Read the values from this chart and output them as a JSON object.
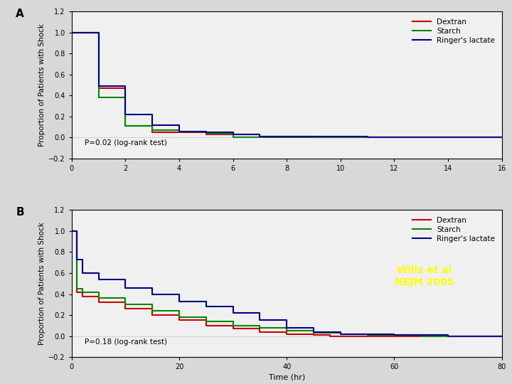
{
  "background_color": "#d8d8d8",
  "panel_bg": "#f0f0f0",
  "title_A": "A",
  "title_B": "B",
  "ylabel": "Proportion of Patients with Shock",
  "xlabel": "Time (hr)",
  "annotation_A": "P=0.02 (log-rank test)",
  "annotation_B": "P=0.18 (log-rank test)",
  "watermark": "Wills et al\nNEJM 2005",
  "watermark_color": "#ffff00",
  "colors": {
    "dextran": "#cc0000",
    "starch": "#008800",
    "ringers": "#000088"
  },
  "legend_labels": [
    "Dextran",
    "Starch",
    "Ringer's lactate"
  ],
  "panelA": {
    "xlim": [
      0,
      16
    ],
    "ylim": [
      -0.2,
      1.2
    ],
    "xticks": [
      0,
      2,
      4,
      6,
      8,
      10,
      12,
      14,
      16
    ],
    "yticks": [
      -0.2,
      0.0,
      0.2,
      0.4,
      0.6,
      0.8,
      1.0,
      1.2
    ],
    "dextran_x": [
      0,
      1,
      1,
      2,
      2,
      3,
      3,
      5,
      5,
      7,
      7,
      9,
      9,
      10,
      10,
      16
    ],
    "dextran_y": [
      1.0,
      1.0,
      0.47,
      0.47,
      0.11,
      0.11,
      0.05,
      0.05,
      0.03,
      0.03,
      0.01,
      0.01,
      0.0,
      0.0,
      0.0,
      0.0
    ],
    "starch_x": [
      0,
      1,
      1,
      2,
      2,
      3,
      3,
      4,
      4,
      5,
      5,
      6,
      6,
      16
    ],
    "starch_y": [
      1.0,
      1.0,
      0.38,
      0.38,
      0.11,
      0.11,
      0.07,
      0.07,
      0.06,
      0.06,
      0.04,
      0.04,
      0.0,
      0.0
    ],
    "ringers_x": [
      0,
      1,
      1,
      2,
      2,
      3,
      3,
      4,
      4,
      5,
      5,
      6,
      6,
      7,
      7,
      11,
      11,
      15,
      15,
      16
    ],
    "ringers_y": [
      1.0,
      1.0,
      0.49,
      0.49,
      0.22,
      0.22,
      0.12,
      0.12,
      0.06,
      0.06,
      0.05,
      0.05,
      0.03,
      0.03,
      0.01,
      0.01,
      0.005,
      0.005,
      0.0,
      0.0
    ]
  },
  "panelB": {
    "xlim": [
      0,
      80
    ],
    "ylim": [
      -0.2,
      1.2
    ],
    "xticks": [
      0,
      20,
      40,
      60,
      80
    ],
    "yticks": [
      -0.2,
      0.0,
      0.2,
      0.4,
      0.6,
      0.8,
      1.0,
      1.2
    ],
    "dextran_x": [
      0,
      1,
      1,
      2,
      2,
      5,
      5,
      10,
      10,
      15,
      15,
      20,
      20,
      25,
      25,
      30,
      30,
      35,
      35,
      40,
      40,
      45,
      45,
      48,
      48,
      80
    ],
    "dextran_y": [
      1.0,
      1.0,
      0.42,
      0.42,
      0.38,
      0.38,
      0.32,
      0.32,
      0.26,
      0.26,
      0.2,
      0.2,
      0.15,
      0.15,
      0.1,
      0.1,
      0.07,
      0.07,
      0.04,
      0.04,
      0.02,
      0.02,
      0.01,
      0.01,
      0.0,
      0.0
    ],
    "starch_x": [
      0,
      1,
      1,
      2,
      2,
      5,
      5,
      10,
      10,
      15,
      15,
      20,
      20,
      25,
      25,
      30,
      30,
      35,
      35,
      40,
      40,
      45,
      45,
      50,
      50,
      55,
      55,
      65,
      65,
      80
    ],
    "starch_y": [
      1.0,
      1.0,
      0.45,
      0.45,
      0.42,
      0.42,
      0.36,
      0.36,
      0.3,
      0.3,
      0.24,
      0.24,
      0.18,
      0.18,
      0.14,
      0.14,
      0.1,
      0.1,
      0.08,
      0.08,
      0.05,
      0.05,
      0.03,
      0.03,
      0.02,
      0.02,
      0.01,
      0.01,
      0.0,
      0.0
    ],
    "ringers_x": [
      0,
      1,
      1,
      2,
      2,
      5,
      5,
      10,
      10,
      15,
      15,
      20,
      20,
      25,
      25,
      30,
      30,
      35,
      35,
      40,
      40,
      45,
      45,
      50,
      50,
      60,
      60,
      70,
      70,
      80
    ],
    "ringers_y": [
      1.0,
      1.0,
      0.73,
      0.73,
      0.6,
      0.6,
      0.54,
      0.54,
      0.46,
      0.46,
      0.4,
      0.4,
      0.33,
      0.33,
      0.28,
      0.28,
      0.22,
      0.22,
      0.15,
      0.15,
      0.08,
      0.08,
      0.04,
      0.04,
      0.02,
      0.02,
      0.01,
      0.01,
      0.0,
      0.0
    ]
  }
}
